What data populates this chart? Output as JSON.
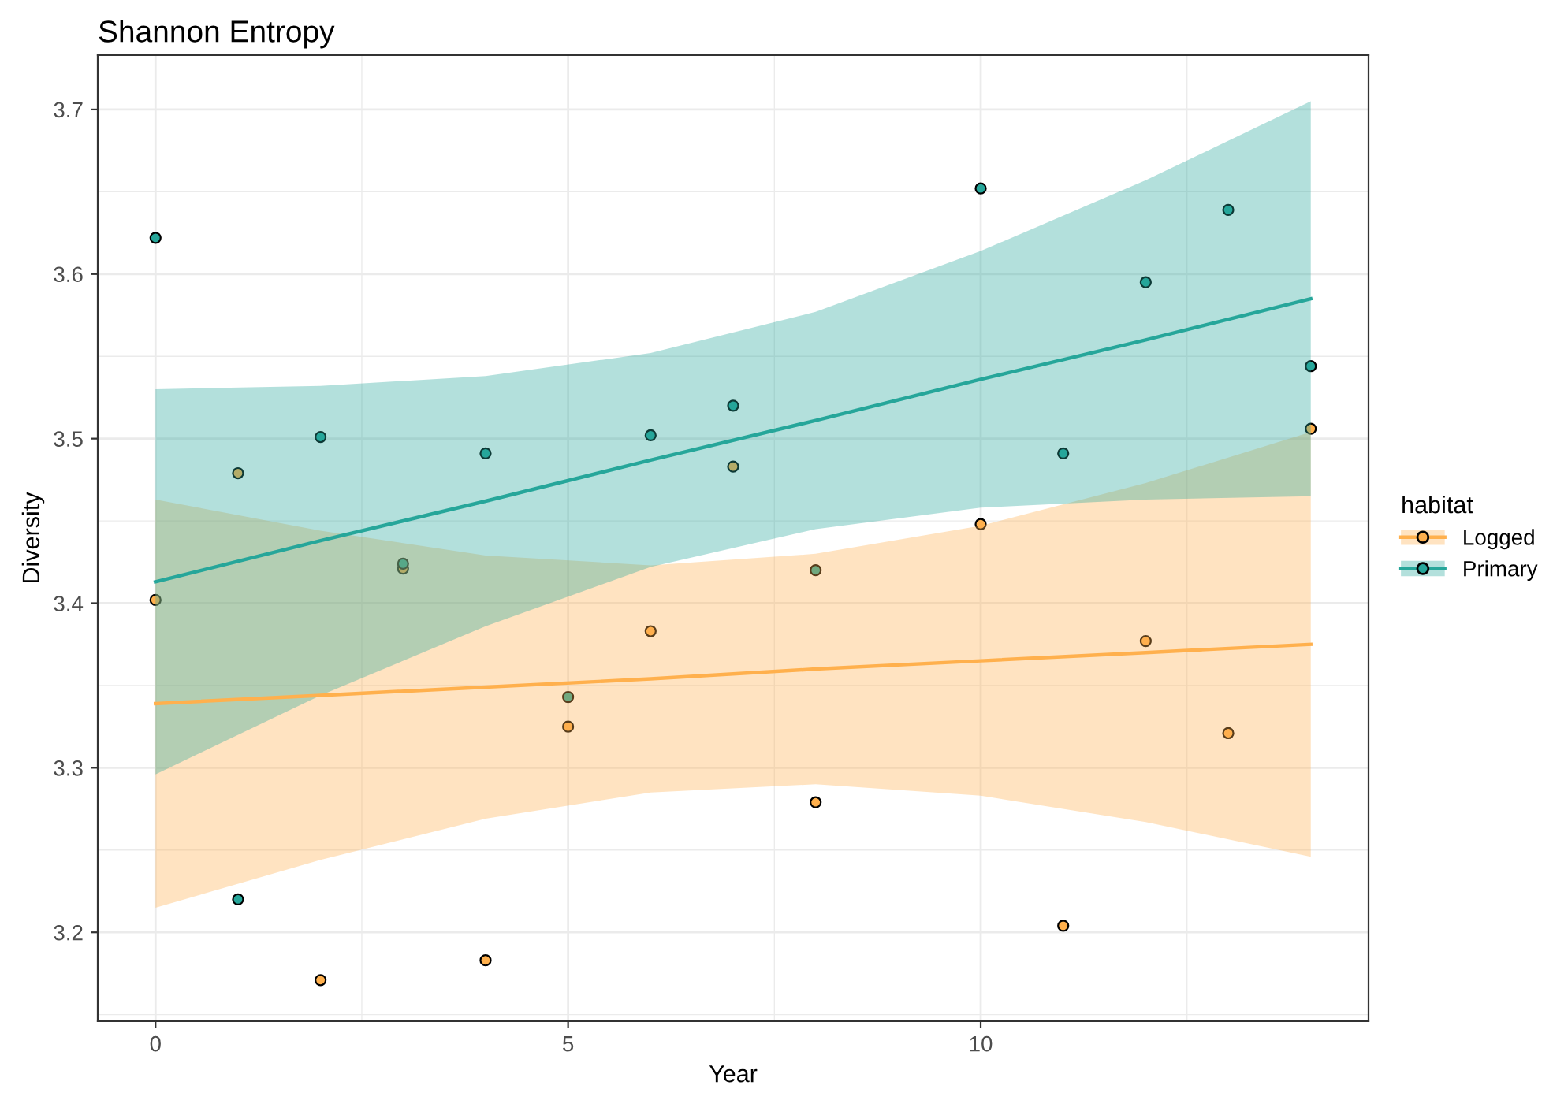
{
  "chart_data": {
    "type": "scatter",
    "title": "Shannon Entropy",
    "xlabel": "Year",
    "ylabel": "Diversity",
    "legend_title": "habitat",
    "legend": "right",
    "grid": true,
    "xlim": [
      -0.7,
      14.7
    ],
    "xticks": [
      0,
      5,
      10
    ],
    "ylim": [
      3.146,
      3.733
    ],
    "yticks": [
      3.2,
      3.3,
      3.4,
      3.5,
      3.6,
      3.7
    ],
    "series": [
      {
        "name": "Logged",
        "marker": "circle",
        "color": "#ffb04d",
        "x": [
          0,
          1,
          2,
          3,
          4,
          5,
          6,
          7,
          8,
          10,
          11,
          12,
          13,
          14
        ],
        "values": [
          3.402,
          3.479,
          3.171,
          3.421,
          3.183,
          3.325,
          3.383,
          3.483,
          3.279,
          3.448,
          3.204,
          3.377,
          3.321,
          3.506
        ]
      },
      {
        "name": "Primary",
        "marker": "circle",
        "color": "#26a69a",
        "x": [
          0,
          1,
          2,
          3,
          4,
          5,
          6,
          7,
          8,
          10,
          11,
          12,
          13,
          14
        ],
        "values": [
          3.622,
          3.22,
          3.501,
          3.424,
          3.491,
          3.343,
          3.502,
          3.52,
          3.42,
          3.652,
          3.491,
          3.595,
          3.639,
          3.544
        ]
      },
      {
        "type": "line",
        "color": "#ffb04d",
        "x": [
          0,
          2,
          4,
          6,
          8,
          10,
          12,
          14
        ],
        "values": [
          3.339,
          3.344,
          3.349,
          3.354,
          3.36,
          3.365,
          3.37,
          3.375
        ],
        "lower": [
          3.215,
          3.244,
          3.269,
          3.285,
          3.29,
          3.283,
          3.267,
          3.246
        ],
        "upper": [
          3.463,
          3.444,
          3.429,
          3.423,
          3.43,
          3.447,
          3.473,
          3.504
        ]
      },
      {
        "type": "line",
        "color": "#26a69a",
        "x": [
          0,
          2,
          4,
          6,
          8,
          10,
          12,
          14
        ],
        "values": [
          3.413,
          3.438,
          3.462,
          3.487,
          3.511,
          3.536,
          3.56,
          3.585
        ],
        "lower": [
          3.296,
          3.344,
          3.386,
          3.422,
          3.445,
          3.458,
          3.463,
          3.465
        ],
        "upper": [
          3.53,
          3.532,
          3.538,
          3.552,
          3.577,
          3.614,
          3.657,
          3.705
        ]
      }
    ]
  }
}
